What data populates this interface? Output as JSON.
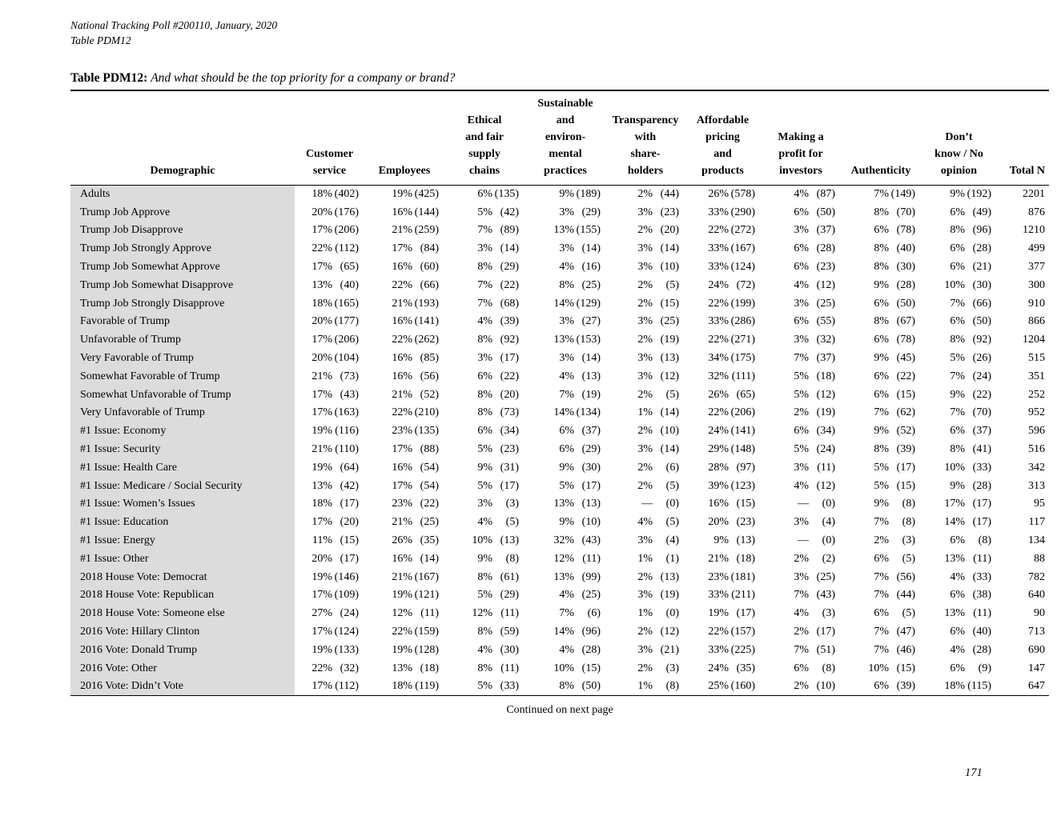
{
  "page": {
    "header_line1": "National Tracking Poll #200110, January, 2020",
    "header_line2": "Table PDM12",
    "title_label": "Table PDM12:",
    "title_question": "And what should be the top priority for a company or brand?",
    "footer_continued": "Continued on next page",
    "page_number": "171"
  },
  "table": {
    "columns": [
      "Demographic",
      "Customer\nservice",
      "Employees",
      "Ethical\nand fair\nsupply\nchains",
      "Sustainable\nand\nenviron-\nmental\npractices",
      "Transparency\nwith\nshare-\nholders",
      "Affordable\npricing\nand\nproducts",
      "Making a\nprofit for\ninvestors",
      "Authenticity",
      "Don’t\nknow / No\nopinion",
      "Total N"
    ],
    "rows": [
      {
        "demographic": "Adults",
        "cells": [
          [
            "18%",
            "(402)"
          ],
          [
            "19%",
            "(425)"
          ],
          [
            "6%",
            "(135)"
          ],
          [
            "9%",
            "(189)"
          ],
          [
            "2%",
            "(44)"
          ],
          [
            "26%",
            "(578)"
          ],
          [
            "4%",
            "(87)"
          ],
          [
            "7%",
            "(149)"
          ],
          [
            "9%",
            "(192)"
          ]
        ],
        "total": "2201"
      },
      {
        "demographic": "Trump Job Approve",
        "cells": [
          [
            "20%",
            "(176)"
          ],
          [
            "16%",
            "(144)"
          ],
          [
            "5%",
            "(42)"
          ],
          [
            "3%",
            "(29)"
          ],
          [
            "3%",
            "(23)"
          ],
          [
            "33%",
            "(290)"
          ],
          [
            "6%",
            "(50)"
          ],
          [
            "8%",
            "(70)"
          ],
          [
            "6%",
            "(49)"
          ]
        ],
        "total": "876"
      },
      {
        "demographic": "Trump Job Disapprove",
        "cells": [
          [
            "17%",
            "(206)"
          ],
          [
            "21%",
            "(259)"
          ],
          [
            "7%",
            "(89)"
          ],
          [
            "13%",
            "(155)"
          ],
          [
            "2%",
            "(20)"
          ],
          [
            "22%",
            "(272)"
          ],
          [
            "3%",
            "(37)"
          ],
          [
            "6%",
            "(78)"
          ],
          [
            "8%",
            "(96)"
          ]
        ],
        "total": "1210"
      },
      {
        "demographic": "Trump Job Strongly Approve",
        "cells": [
          [
            "22%",
            "(112)"
          ],
          [
            "17%",
            "(84)"
          ],
          [
            "3%",
            "(14)"
          ],
          [
            "3%",
            "(14)"
          ],
          [
            "3%",
            "(14)"
          ],
          [
            "33%",
            "(167)"
          ],
          [
            "6%",
            "(28)"
          ],
          [
            "8%",
            "(40)"
          ],
          [
            "6%",
            "(28)"
          ]
        ],
        "total": "499"
      },
      {
        "demographic": "Trump Job Somewhat Approve",
        "cells": [
          [
            "17%",
            "(65)"
          ],
          [
            "16%",
            "(60)"
          ],
          [
            "8%",
            "(29)"
          ],
          [
            "4%",
            "(16)"
          ],
          [
            "3%",
            "(10)"
          ],
          [
            "33%",
            "(124)"
          ],
          [
            "6%",
            "(23)"
          ],
          [
            "8%",
            "(30)"
          ],
          [
            "6%",
            "(21)"
          ]
        ],
        "total": "377"
      },
      {
        "demographic": "Trump Job Somewhat Disapprove",
        "cells": [
          [
            "13%",
            "(40)"
          ],
          [
            "22%",
            "(66)"
          ],
          [
            "7%",
            "(22)"
          ],
          [
            "8%",
            "(25)"
          ],
          [
            "2%",
            "(5)"
          ],
          [
            "24%",
            "(72)"
          ],
          [
            "4%",
            "(12)"
          ],
          [
            "9%",
            "(28)"
          ],
          [
            "10%",
            "(30)"
          ]
        ],
        "total": "300"
      },
      {
        "demographic": "Trump Job Strongly Disapprove",
        "cells": [
          [
            "18%",
            "(165)"
          ],
          [
            "21%",
            "(193)"
          ],
          [
            "7%",
            "(68)"
          ],
          [
            "14%",
            "(129)"
          ],
          [
            "2%",
            "(15)"
          ],
          [
            "22%",
            "(199)"
          ],
          [
            "3%",
            "(25)"
          ],
          [
            "6%",
            "(50)"
          ],
          [
            "7%",
            "(66)"
          ]
        ],
        "total": "910"
      },
      {
        "demographic": "Favorable of Trump",
        "cells": [
          [
            "20%",
            "(177)"
          ],
          [
            "16%",
            "(141)"
          ],
          [
            "4%",
            "(39)"
          ],
          [
            "3%",
            "(27)"
          ],
          [
            "3%",
            "(25)"
          ],
          [
            "33%",
            "(286)"
          ],
          [
            "6%",
            "(55)"
          ],
          [
            "8%",
            "(67)"
          ],
          [
            "6%",
            "(50)"
          ]
        ],
        "total": "866"
      },
      {
        "demographic": "Unfavorable of Trump",
        "cells": [
          [
            "17%",
            "(206)"
          ],
          [
            "22%",
            "(262)"
          ],
          [
            "8%",
            "(92)"
          ],
          [
            "13%",
            "(153)"
          ],
          [
            "2%",
            "(19)"
          ],
          [
            "22%",
            "(271)"
          ],
          [
            "3%",
            "(32)"
          ],
          [
            "6%",
            "(78)"
          ],
          [
            "8%",
            "(92)"
          ]
        ],
        "total": "1204"
      },
      {
        "demographic": "Very Favorable of Trump",
        "cells": [
          [
            "20%",
            "(104)"
          ],
          [
            "16%",
            "(85)"
          ],
          [
            "3%",
            "(17)"
          ],
          [
            "3%",
            "(14)"
          ],
          [
            "3%",
            "(13)"
          ],
          [
            "34%",
            "(175)"
          ],
          [
            "7%",
            "(37)"
          ],
          [
            "9%",
            "(45)"
          ],
          [
            "5%",
            "(26)"
          ]
        ],
        "total": "515"
      },
      {
        "demographic": "Somewhat Favorable of Trump",
        "cells": [
          [
            "21%",
            "(73)"
          ],
          [
            "16%",
            "(56)"
          ],
          [
            "6%",
            "(22)"
          ],
          [
            "4%",
            "(13)"
          ],
          [
            "3%",
            "(12)"
          ],
          [
            "32%",
            "(111)"
          ],
          [
            "5%",
            "(18)"
          ],
          [
            "6%",
            "(22)"
          ],
          [
            "7%",
            "(24)"
          ]
        ],
        "total": "351"
      },
      {
        "demographic": "Somewhat Unfavorable of Trump",
        "cells": [
          [
            "17%",
            "(43)"
          ],
          [
            "21%",
            "(52)"
          ],
          [
            "8%",
            "(20)"
          ],
          [
            "7%",
            "(19)"
          ],
          [
            "2%",
            "(5)"
          ],
          [
            "26%",
            "(65)"
          ],
          [
            "5%",
            "(12)"
          ],
          [
            "6%",
            "(15)"
          ],
          [
            "9%",
            "(22)"
          ]
        ],
        "total": "252"
      },
      {
        "demographic": "Very Unfavorable of Trump",
        "cells": [
          [
            "17%",
            "(163)"
          ],
          [
            "22%",
            "(210)"
          ],
          [
            "8%",
            "(73)"
          ],
          [
            "14%",
            "(134)"
          ],
          [
            "1%",
            "(14)"
          ],
          [
            "22%",
            "(206)"
          ],
          [
            "2%",
            "(19)"
          ],
          [
            "7%",
            "(62)"
          ],
          [
            "7%",
            "(70)"
          ]
        ],
        "total": "952"
      },
      {
        "demographic": "#1 Issue: Economy",
        "cells": [
          [
            "19%",
            "(116)"
          ],
          [
            "23%",
            "(135)"
          ],
          [
            "6%",
            "(34)"
          ],
          [
            "6%",
            "(37)"
          ],
          [
            "2%",
            "(10)"
          ],
          [
            "24%",
            "(141)"
          ],
          [
            "6%",
            "(34)"
          ],
          [
            "9%",
            "(52)"
          ],
          [
            "6%",
            "(37)"
          ]
        ],
        "total": "596"
      },
      {
        "demographic": "#1 Issue: Security",
        "cells": [
          [
            "21%",
            "(110)"
          ],
          [
            "17%",
            "(88)"
          ],
          [
            "5%",
            "(23)"
          ],
          [
            "6%",
            "(29)"
          ],
          [
            "3%",
            "(14)"
          ],
          [
            "29%",
            "(148)"
          ],
          [
            "5%",
            "(24)"
          ],
          [
            "8%",
            "(39)"
          ],
          [
            "8%",
            "(41)"
          ]
        ],
        "total": "516"
      },
      {
        "demographic": "#1 Issue: Health Care",
        "cells": [
          [
            "19%",
            "(64)"
          ],
          [
            "16%",
            "(54)"
          ],
          [
            "9%",
            "(31)"
          ],
          [
            "9%",
            "(30)"
          ],
          [
            "2%",
            "(6)"
          ],
          [
            "28%",
            "(97)"
          ],
          [
            "3%",
            "(11)"
          ],
          [
            "5%",
            "(17)"
          ],
          [
            "10%",
            "(33)"
          ]
        ],
        "total": "342"
      },
      {
        "demographic": "#1 Issue: Medicare / Social Security",
        "cells": [
          [
            "13%",
            "(42)"
          ],
          [
            "17%",
            "(54)"
          ],
          [
            "5%",
            "(17)"
          ],
          [
            "5%",
            "(17)"
          ],
          [
            "2%",
            "(5)"
          ],
          [
            "39%",
            "(123)"
          ],
          [
            "4%",
            "(12)"
          ],
          [
            "5%",
            "(15)"
          ],
          [
            "9%",
            "(28)"
          ]
        ],
        "total": "313"
      },
      {
        "demographic": "#1 Issue: Women’s Issues",
        "cells": [
          [
            "18%",
            "(17)"
          ],
          [
            "23%",
            "(22)"
          ],
          [
            "3%",
            "(3)"
          ],
          [
            "13%",
            "(13)"
          ],
          [
            "—",
            "(0)"
          ],
          [
            "16%",
            "(15)"
          ],
          [
            "—",
            "(0)"
          ],
          [
            "9%",
            "(8)"
          ],
          [
            "17%",
            "(17)"
          ]
        ],
        "total": "95"
      },
      {
        "demographic": "#1 Issue: Education",
        "cells": [
          [
            "17%",
            "(20)"
          ],
          [
            "21%",
            "(25)"
          ],
          [
            "4%",
            "(5)"
          ],
          [
            "9%",
            "(10)"
          ],
          [
            "4%",
            "(5)"
          ],
          [
            "20%",
            "(23)"
          ],
          [
            "3%",
            "(4)"
          ],
          [
            "7%",
            "(8)"
          ],
          [
            "14%",
            "(17)"
          ]
        ],
        "total": "117"
      },
      {
        "demographic": "#1 Issue: Energy",
        "cells": [
          [
            "11%",
            "(15)"
          ],
          [
            "26%",
            "(35)"
          ],
          [
            "10%",
            "(13)"
          ],
          [
            "32%",
            "(43)"
          ],
          [
            "3%",
            "(4)"
          ],
          [
            "9%",
            "(13)"
          ],
          [
            "—",
            "(0)"
          ],
          [
            "2%",
            "(3)"
          ],
          [
            "6%",
            "(8)"
          ]
        ],
        "total": "134"
      },
      {
        "demographic": "#1 Issue: Other",
        "cells": [
          [
            "20%",
            "(17)"
          ],
          [
            "16%",
            "(14)"
          ],
          [
            "9%",
            "(8)"
          ],
          [
            "12%",
            "(11)"
          ],
          [
            "1%",
            "(1)"
          ],
          [
            "21%",
            "(18)"
          ],
          [
            "2%",
            "(2)"
          ],
          [
            "6%",
            "(5)"
          ],
          [
            "13%",
            "(11)"
          ]
        ],
        "total": "88"
      },
      {
        "demographic": "2018 House Vote: Democrat",
        "cells": [
          [
            "19%",
            "(146)"
          ],
          [
            "21%",
            "(167)"
          ],
          [
            "8%",
            "(61)"
          ],
          [
            "13%",
            "(99)"
          ],
          [
            "2%",
            "(13)"
          ],
          [
            "23%",
            "(181)"
          ],
          [
            "3%",
            "(25)"
          ],
          [
            "7%",
            "(56)"
          ],
          [
            "4%",
            "(33)"
          ]
        ],
        "total": "782"
      },
      {
        "demographic": "2018 House Vote: Republican",
        "cells": [
          [
            "17%",
            "(109)"
          ],
          [
            "19%",
            "(121)"
          ],
          [
            "5%",
            "(29)"
          ],
          [
            "4%",
            "(25)"
          ],
          [
            "3%",
            "(19)"
          ],
          [
            "33%",
            "(211)"
          ],
          [
            "7%",
            "(43)"
          ],
          [
            "7%",
            "(44)"
          ],
          [
            "6%",
            "(38)"
          ]
        ],
        "total": "640"
      },
      {
        "demographic": "2018 House Vote: Someone else",
        "cells": [
          [
            "27%",
            "(24)"
          ],
          [
            "12%",
            "(11)"
          ],
          [
            "12%",
            "(11)"
          ],
          [
            "7%",
            "(6)"
          ],
          [
            "1%",
            "(0)"
          ],
          [
            "19%",
            "(17)"
          ],
          [
            "4%",
            "(3)"
          ],
          [
            "6%",
            "(5)"
          ],
          [
            "13%",
            "(11)"
          ]
        ],
        "total": "90"
      },
      {
        "demographic": "2016 Vote: Hillary Clinton",
        "cells": [
          [
            "17%",
            "(124)"
          ],
          [
            "22%",
            "(159)"
          ],
          [
            "8%",
            "(59)"
          ],
          [
            "14%",
            "(96)"
          ],
          [
            "2%",
            "(12)"
          ],
          [
            "22%",
            "(157)"
          ],
          [
            "2%",
            "(17)"
          ],
          [
            "7%",
            "(47)"
          ],
          [
            "6%",
            "(40)"
          ]
        ],
        "total": "713"
      },
      {
        "demographic": "2016 Vote: Donald Trump",
        "cells": [
          [
            "19%",
            "(133)"
          ],
          [
            "19%",
            "(128)"
          ],
          [
            "4%",
            "(30)"
          ],
          [
            "4%",
            "(28)"
          ],
          [
            "3%",
            "(21)"
          ],
          [
            "33%",
            "(225)"
          ],
          [
            "7%",
            "(51)"
          ],
          [
            "7%",
            "(46)"
          ],
          [
            "4%",
            "(28)"
          ]
        ],
        "total": "690"
      },
      {
        "demographic": "2016 Vote: Other",
        "cells": [
          [
            "22%",
            "(32)"
          ],
          [
            "13%",
            "(18)"
          ],
          [
            "8%",
            "(11)"
          ],
          [
            "10%",
            "(15)"
          ],
          [
            "2%",
            "(3)"
          ],
          [
            "24%",
            "(35)"
          ],
          [
            "6%",
            "(8)"
          ],
          [
            "10%",
            "(15)"
          ],
          [
            "6%",
            "(9)"
          ]
        ],
        "total": "147"
      },
      {
        "demographic": "2016 Vote: Didn’t Vote",
        "cells": [
          [
            "17%",
            "(112)"
          ],
          [
            "18%",
            "(119)"
          ],
          [
            "5%",
            "(33)"
          ],
          [
            "8%",
            "(50)"
          ],
          [
            "1%",
            "(8)"
          ],
          [
            "25%",
            "(160)"
          ],
          [
            "2%",
            "(10)"
          ],
          [
            "6%",
            "(39)"
          ],
          [
            "18%",
            "(115)"
          ]
        ],
        "total": "647"
      }
    ]
  }
}
